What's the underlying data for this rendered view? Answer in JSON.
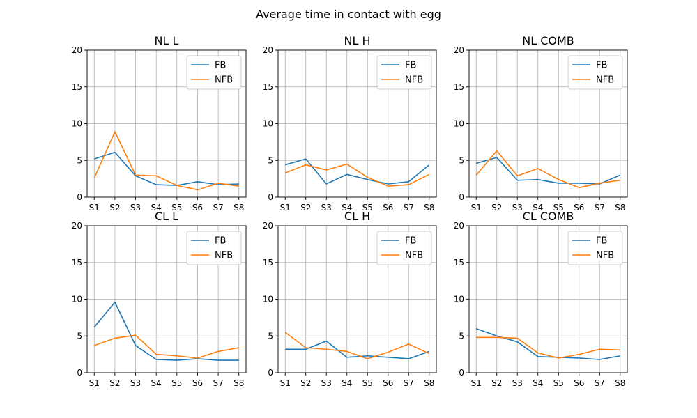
{
  "chart_data": {
    "title": "Average time in contact with egg",
    "panels": [
      {
        "type": "line",
        "title": "NL L",
        "categories": [
          "S1",
          "S2",
          "S3",
          "S4",
          "S5",
          "S6",
          "S7",
          "S8"
        ],
        "ylim": [
          0,
          20
        ],
        "yticks": [
          0,
          5,
          10,
          15,
          20
        ],
        "grid": true,
        "legend_position": "top-right",
        "series": [
          {
            "name": "FB",
            "color": "#1f77b4",
            "values": [
              5.2,
              6.1,
              2.9,
              1.7,
              1.6,
              2.1,
              1.7,
              1.8
            ]
          },
          {
            "name": "NFB",
            "color": "#ff7f0e",
            "values": [
              2.6,
              8.9,
              3.0,
              2.9,
              1.6,
              1.0,
              1.9,
              1.5
            ]
          }
        ]
      },
      {
        "type": "line",
        "title": "NL H",
        "categories": [
          "S1",
          "S2",
          "S3",
          "S4",
          "S5",
          "S6",
          "S7",
          "S8"
        ],
        "ylim": [
          0,
          20
        ],
        "yticks": [
          0,
          5,
          10,
          15,
          20
        ],
        "grid": true,
        "legend_position": "top-right",
        "series": [
          {
            "name": "FB",
            "color": "#1f77b4",
            "values": [
              4.4,
              5.2,
              1.8,
              3.1,
              2.4,
              1.8,
              2.1,
              4.4
            ]
          },
          {
            "name": "NFB",
            "color": "#ff7f0e",
            "values": [
              3.3,
              4.4,
              3.7,
              4.5,
              2.7,
              1.5,
              1.7,
              3.1
            ]
          }
        ]
      },
      {
        "type": "line",
        "title": "NL COMB",
        "categories": [
          "S1",
          "S2",
          "S3",
          "S4",
          "S5",
          "S6",
          "S7",
          "S8"
        ],
        "ylim": [
          0,
          20
        ],
        "yticks": [
          0,
          5,
          10,
          15,
          20
        ],
        "grid": true,
        "legend_position": "top-right",
        "series": [
          {
            "name": "FB",
            "color": "#1f77b4",
            "values": [
              4.6,
              5.4,
              2.3,
              2.4,
              1.9,
              1.9,
              1.8,
              3.0
            ]
          },
          {
            "name": "NFB",
            "color": "#ff7f0e",
            "values": [
              3.0,
              6.3,
              2.9,
              3.9,
              2.4,
              1.3,
              1.9,
              2.3
            ]
          }
        ]
      },
      {
        "type": "line",
        "title": "CL L",
        "categories": [
          "S1",
          "S2",
          "S3",
          "S4",
          "S5",
          "S6",
          "S7",
          "S8"
        ],
        "ylim": [
          0,
          20
        ],
        "yticks": [
          0,
          5,
          10,
          15,
          20
        ],
        "grid": true,
        "legend_position": "top-right",
        "series": [
          {
            "name": "FB",
            "color": "#1f77b4",
            "values": [
              6.2,
              9.6,
              3.7,
              1.8,
              1.7,
              1.9,
              1.7,
              1.7
            ]
          },
          {
            "name": "NFB",
            "color": "#ff7f0e",
            "values": [
              3.7,
              4.7,
              5.1,
              2.5,
              2.3,
              2.0,
              2.9,
              3.4
            ]
          }
        ]
      },
      {
        "type": "line",
        "title": "CL H",
        "categories": [
          "S1",
          "S2",
          "S3",
          "S4",
          "S5",
          "S6",
          "S7",
          "S8"
        ],
        "ylim": [
          0,
          20
        ],
        "yticks": [
          0,
          5,
          10,
          15,
          20
        ],
        "grid": true,
        "legend_position": "top-right",
        "series": [
          {
            "name": "FB",
            "color": "#1f77b4",
            "values": [
              3.2,
              3.2,
              4.3,
              2.1,
              2.3,
              2.1,
              1.9,
              2.9
            ]
          },
          {
            "name": "NFB",
            "color": "#ff7f0e",
            "values": [
              5.5,
              3.4,
              3.2,
              2.9,
              1.9,
              2.8,
              3.9,
              2.6
            ]
          }
        ]
      },
      {
        "type": "line",
        "title": "CL COMB",
        "categories": [
          "S1",
          "S2",
          "S3",
          "S4",
          "S5",
          "S6",
          "S7",
          "S8"
        ],
        "ylim": [
          0,
          20
        ],
        "yticks": [
          0,
          5,
          10,
          15,
          20
        ],
        "grid": true,
        "legend_position": "top-right",
        "series": [
          {
            "name": "FB",
            "color": "#1f77b4",
            "values": [
              6.0,
              5.0,
              4.2,
              2.2,
              2.1,
              2.0,
              1.8,
              2.3
            ]
          },
          {
            "name": "NFB",
            "color": "#ff7f0e",
            "values": [
              4.8,
              4.8,
              4.7,
              2.7,
              2.0,
              2.5,
              3.2,
              3.1
            ]
          }
        ]
      }
    ]
  }
}
